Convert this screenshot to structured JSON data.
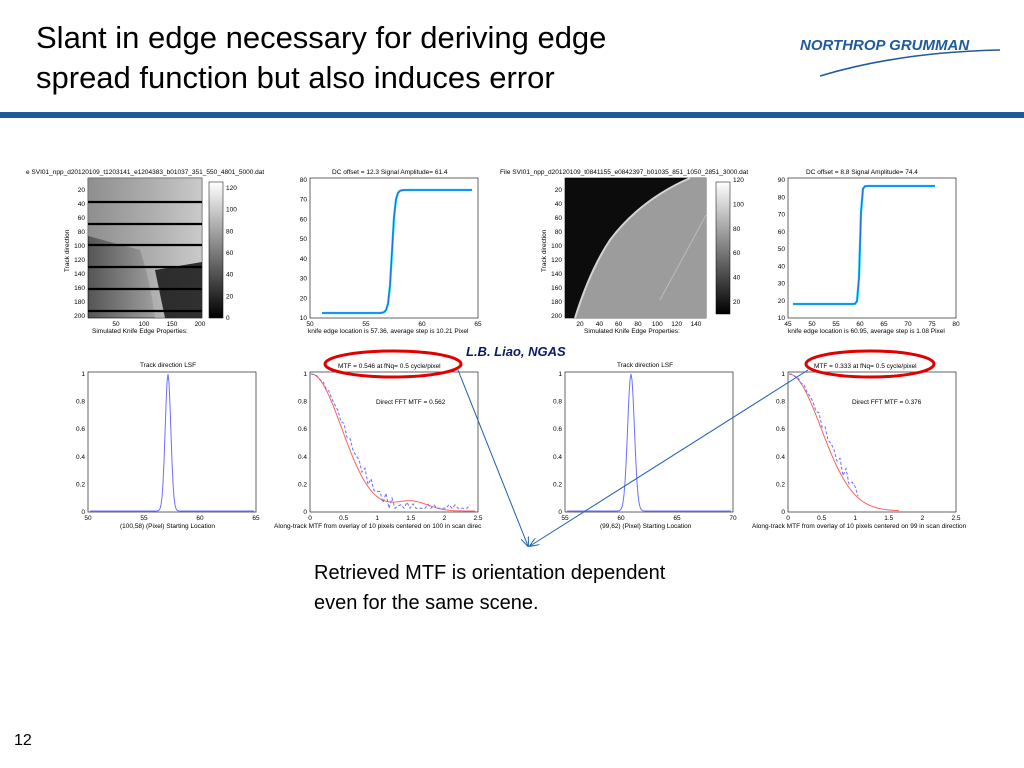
{
  "slide": {
    "title_line1": "Slant in edge necessary for deriving edge",
    "title_line2": "spread function but also induces error",
    "logo_text": "NORTHROP GRUMMAN",
    "credit": "L.B. Liao, NGAS",
    "caption_line1": "Retrieved MTF is orientation dependent",
    "caption_line2": "even for the same scene.",
    "page_number": "12"
  },
  "colors": {
    "rule": "#1f5a9c",
    "highlight": "#e00000",
    "arrow": "#2060b0",
    "data": "#00bfff",
    "fit": "#3355dd",
    "pink": "#ff6060",
    "lsf": "#6e6eff"
  },
  "panels": {
    "img1": {
      "title": "e SVI01_npp_d20120109_t1203141_e1204383_b01037_351_550_4801_5000.dat",
      "ylabel": "Track direction",
      "xlabel": "Simulated Knife Edge Properties:",
      "yticks": [
        "20",
        "40",
        "60",
        "80",
        "100",
        "120",
        "140",
        "160",
        "180",
        "200"
      ],
      "xticks": [
        "50",
        "100",
        "150",
        "200"
      ],
      "cbar": [
        "120",
        "100",
        "80",
        "60",
        "40",
        "20",
        "0"
      ]
    },
    "esf1": {
      "title": "DC offset = 12.3 Signal Amplitude= 61.4",
      "xlabel": "knife edge location is 57.36, average step is 10.21 Pixel",
      "yticks": [
        "80",
        "70",
        "60",
        "50",
        "40",
        "30",
        "20",
        "10"
      ],
      "xticks": [
        "50",
        "55",
        "60",
        "65"
      ]
    },
    "img2": {
      "title": "File SVI01_npp_d20120109_t0841155_e0842397_b01035_851_1050_2851_3000.dat",
      "ylabel": "Track direction",
      "xlabel": "Simulated Knife Edge Properties:",
      "yticks": [
        "20",
        "40",
        "60",
        "80",
        "100",
        "120",
        "140",
        "160",
        "180",
        "200"
      ],
      "xticks": [
        "20",
        "40",
        "60",
        "80",
        "100",
        "120",
        "140"
      ],
      "cbar": [
        "120",
        "100",
        "80",
        "60",
        "40",
        "20"
      ]
    },
    "esf2": {
      "title": "DC offset = 8.8 Signal Amplitude= 74.4",
      "xlabel": "knife edge location is 60.95, average step is 1.08 Pixel",
      "yticks": [
        "90",
        "80",
        "70",
        "60",
        "50",
        "40",
        "30",
        "20",
        "10"
      ],
      "xticks": [
        "45",
        "50",
        "55",
        "60",
        "65",
        "70",
        "75",
        "80"
      ]
    },
    "lsf1": {
      "title": "Track direction LSF",
      "xlabel": "(100,58) (Pixel) Starting Location",
      "yticks": [
        "1",
        "0.8",
        "0.6",
        "0.4",
        "0.2",
        "0"
      ],
      "xticks": [
        "50",
        "55",
        "60",
        "65"
      ]
    },
    "mtf1": {
      "label": "MTF = 0.546 at fNq= 0.5 cycle/pixel",
      "fft": "Direct FFT MTF = 0.562",
      "xlabel": "Along-track MTF from overlay of 10 pixels centered on 100 in scan direc",
      "yticks": [
        "1",
        "0.8",
        "0.6",
        "0.4",
        "0.2",
        "0"
      ],
      "xticks": [
        "0",
        "0.5",
        "1",
        "1.5",
        "2",
        "2.5"
      ]
    },
    "lsf2": {
      "title": "Track direction LSF",
      "xlabel": "(99,62) (Pixel) Starting Location",
      "yticks": [
        "1",
        "0.8",
        "0.6",
        "0.4",
        "0.2",
        "0"
      ],
      "xticks": [
        "55",
        "60",
        "65",
        "70"
      ]
    },
    "mtf2": {
      "label": "MTF = 0.333 at fNq= 0.5 cycle/pixel",
      "fft": "Direct FFT MTF = 0.376",
      "xlabel": "Along-track MTF from overlay of 10 pixels centered on 99 in scan direction",
      "yticks": [
        "1",
        "0.8",
        "0.6",
        "0.4",
        "0.2",
        "0"
      ],
      "xticks": [
        "0",
        "0.5",
        "1",
        "1.5",
        "2",
        "2.5"
      ]
    }
  }
}
